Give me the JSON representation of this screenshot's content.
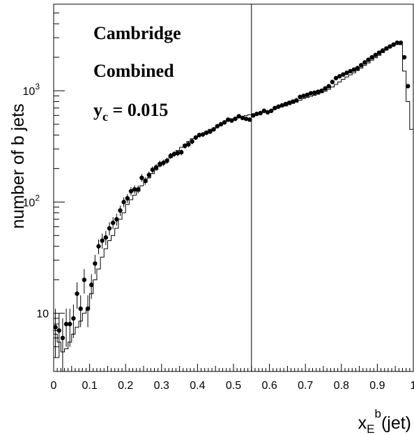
{
  "chart_data": {
    "type": "scatter",
    "title": "",
    "ylabel": "number of b jets",
    "xlabel": {
      "base": "x",
      "sub": "E",
      "sup": "b",
      "suffix": "(jet)"
    },
    "annotations": [
      {
        "text": "Cambridge"
      },
      {
        "text": "Combined"
      },
      {
        "text": "y",
        "sub": "c",
        "rest": " = 0.015"
      }
    ],
    "xlim": [
      0,
      1
    ],
    "ylim": [
      3,
      6000
    ],
    "y_scale": "log",
    "x_ticks": [
      {
        "v": 0,
        "label": "0"
      },
      {
        "v": 0.1,
        "label": "0.1"
      },
      {
        "v": 0.2,
        "label": "0.2"
      },
      {
        "v": 0.3,
        "label": "0.3"
      },
      {
        "v": 0.4,
        "label": "0.4"
      },
      {
        "v": 0.5,
        "label": "0.5"
      },
      {
        "v": 0.6,
        "label": "0.6"
      },
      {
        "v": 0.7,
        "label": "0.7"
      },
      {
        "v": 0.8,
        "label": "0.8"
      },
      {
        "v": 0.9,
        "label": "0.9"
      },
      {
        "v": 1,
        "label": "1"
      }
    ],
    "y_ticks": [
      {
        "v": 10,
        "label": "10"
      },
      {
        "v": 100,
        "label": "10",
        "sup": "2"
      },
      {
        "v": 1000,
        "label": "10",
        "sup": "3"
      }
    ],
    "cut_line_x": 0.55,
    "series": [
      {
        "style": "markers",
        "x": [
          0.005,
          0.015,
          0.025,
          0.035,
          0.045,
          0.055,
          0.065,
          0.075,
          0.085,
          0.095,
          0.105,
          0.115,
          0.125,
          0.135,
          0.145,
          0.155,
          0.165,
          0.175,
          0.185,
          0.195,
          0.205,
          0.215,
          0.225,
          0.235,
          0.245,
          0.255,
          0.265,
          0.275,
          0.285,
          0.295,
          0.305,
          0.315,
          0.325,
          0.335,
          0.345,
          0.355,
          0.365,
          0.375,
          0.385,
          0.395,
          0.405,
          0.415,
          0.425,
          0.435,
          0.445,
          0.455,
          0.465,
          0.475,
          0.485,
          0.495,
          0.505,
          0.515,
          0.525,
          0.535,
          0.545,
          0.555,
          0.565,
          0.575,
          0.585,
          0.595,
          0.605,
          0.615,
          0.625,
          0.635,
          0.645,
          0.655,
          0.665,
          0.675,
          0.685,
          0.695,
          0.705,
          0.715,
          0.725,
          0.735,
          0.745,
          0.755,
          0.765,
          0.775,
          0.785,
          0.795,
          0.805,
          0.815,
          0.825,
          0.835,
          0.845,
          0.855,
          0.865,
          0.875,
          0.885,
          0.895,
          0.905,
          0.915,
          0.925,
          0.935,
          0.945,
          0.955,
          0.965,
          0.975,
          0.985
        ],
        "y": [
          7.5,
          7,
          6,
          8,
          8,
          9,
          15,
          11,
          20,
          11,
          18,
          28,
          40,
          45,
          48,
          58,
          65,
          70,
          84,
          100,
          108,
          125,
          130,
          130,
          165,
          155,
          175,
          195,
          205,
          220,
          225,
          235,
          260,
          270,
          275,
          280,
          320,
          330,
          350,
          380,
          400,
          405,
          420,
          430,
          450,
          480,
          500,
          520,
          550,
          540,
          560,
          590,
          570,
          560,
          550,
          600,
          620,
          630,
          660,
          640,
          660,
          700,
          720,
          740,
          760,
          780,
          800,
          820,
          880,
          900,
          920,
          950,
          960,
          980,
          1000,
          1050,
          1100,
          1200,
          1300,
          1350,
          1400,
          1450,
          1500,
          1550,
          1600,
          1700,
          1800,
          1900,
          2000,
          2100,
          2200,
          2300,
          2400,
          2500,
          2600,
          2700,
          2700,
          2000,
          1100
        ],
        "err": [
          3.5,
          3,
          3,
          3,
          3,
          3,
          4,
          3.5,
          5,
          3.5,
          4.5,
          5.5,
          6,
          7,
          7,
          8,
          8,
          8.5,
          9,
          10,
          10,
          11,
          11,
          11,
          13,
          12,
          13,
          14,
          14,
          15,
          15,
          15,
          16,
          16,
          17,
          17,
          18,
          18,
          19,
          19,
          20,
          20,
          21,
          21,
          21,
          22,
          22,
          23,
          23,
          23,
          24,
          24,
          24,
          24,
          23,
          25,
          25,
          25,
          26,
          25,
          26,
          26,
          27,
          27,
          28,
          28,
          28,
          29,
          30,
          30,
          30,
          31,
          31,
          31,
          32,
          32,
          33,
          35,
          36,
          37,
          37,
          38,
          39,
          39,
          40,
          41,
          42,
          44,
          45,
          46,
          47,
          48,
          49,
          50,
          51,
          52,
          52,
          45,
          33
        ]
      },
      {
        "style": "histogram",
        "bin_width": 0.01,
        "x": [
          0.005,
          0.015,
          0.025,
          0.035,
          0.045,
          0.055,
          0.065,
          0.075,
          0.085,
          0.095,
          0.105,
          0.115,
          0.125,
          0.135,
          0.145,
          0.155,
          0.165,
          0.175,
          0.185,
          0.195,
          0.205,
          0.215,
          0.225,
          0.235,
          0.245,
          0.255,
          0.265,
          0.275,
          0.285,
          0.295,
          0.305,
          0.315,
          0.325,
          0.335,
          0.345,
          0.355,
          0.365,
          0.375,
          0.385,
          0.395,
          0.405,
          0.415,
          0.425,
          0.435,
          0.445,
          0.455,
          0.465,
          0.475,
          0.485,
          0.495,
          0.505,
          0.515,
          0.525,
          0.535,
          0.545,
          0.555,
          0.565,
          0.575,
          0.585,
          0.595,
          0.605,
          0.615,
          0.625,
          0.635,
          0.645,
          0.655,
          0.665,
          0.675,
          0.685,
          0.695,
          0.705,
          0.715,
          0.725,
          0.735,
          0.745,
          0.755,
          0.765,
          0.775,
          0.785,
          0.795,
          0.805,
          0.815,
          0.825,
          0.835,
          0.845,
          0.855,
          0.865,
          0.875,
          0.885,
          0.895,
          0.905,
          0.915,
          0.925,
          0.935,
          0.945,
          0.955,
          0.965,
          0.975,
          0.985,
          0.995
        ],
        "y": [
          6.5,
          5.5,
          4.5,
          4.8,
          5.5,
          6.5,
          7.5,
          8.5,
          10,
          11,
          15,
          20,
          25,
          32,
          38,
          45,
          50,
          58,
          70,
          80,
          95,
          105,
          115,
          125,
          140,
          150,
          165,
          180,
          195,
          210,
          220,
          240,
          250,
          270,
          290,
          310,
          330,
          350,
          370,
          380,
          395,
          410,
          430,
          450,
          460,
          480,
          500,
          520,
          540,
          560,
          570,
          580,
          590,
          600,
          610,
          620,
          630,
          640,
          650,
          660,
          670,
          690,
          710,
          720,
          730,
          750,
          770,
          790,
          820,
          850,
          870,
          890,
          910,
          930,
          960,
          990,
          1030,
          1080,
          1140,
          1200,
          1270,
          1330,
          1390,
          1450,
          1520,
          1600,
          1690,
          1780,
          1880,
          1980,
          2080,
          2200,
          2320,
          2450,
          2550,
          2650,
          2600,
          1500,
          800,
          450
        ]
      }
    ]
  }
}
